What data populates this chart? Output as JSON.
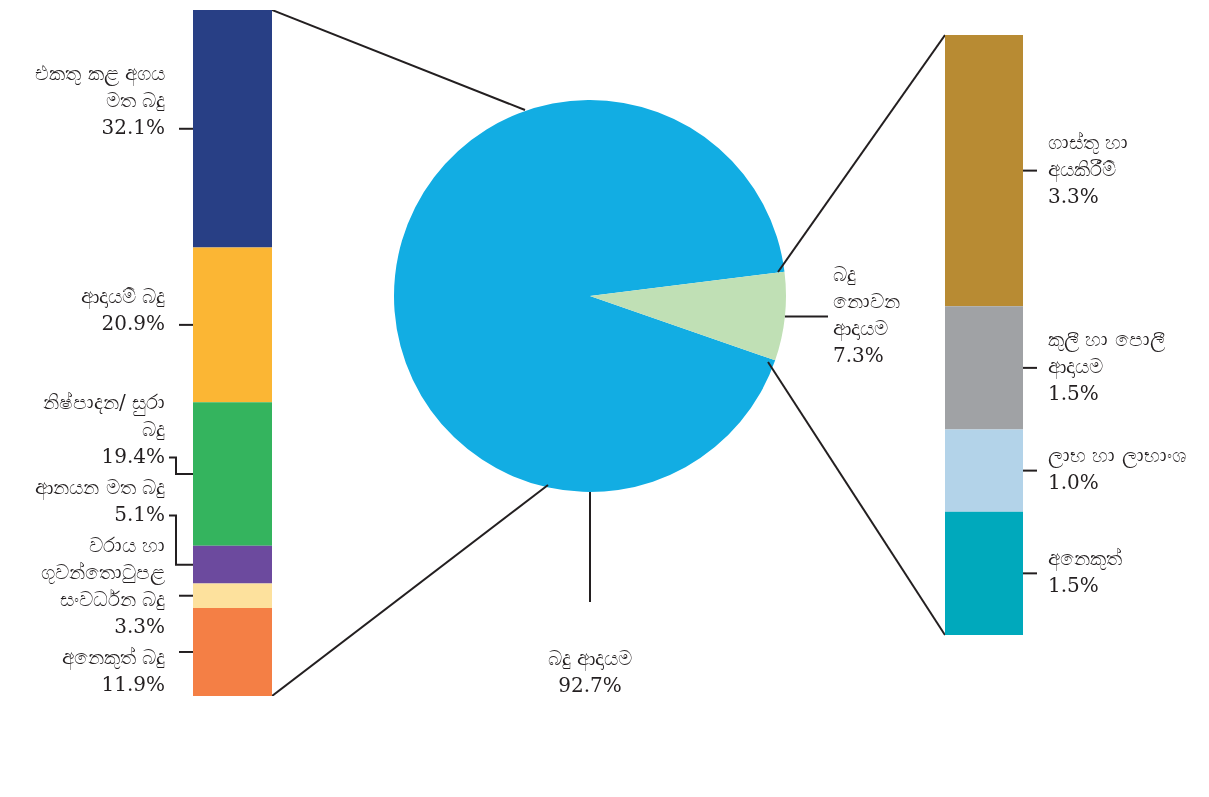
{
  "chart_data": [
    {
      "type": "bar",
      "stacked": true,
      "tick_labels": false,
      "categories": [
        null
      ],
      "series": [
        {
          "name": "අනෙකුත් බදු",
          "color": "#f47f45",
          "values": [
            11.9
          ],
          "value_labels": [
            "11.9%"
          ]
        },
        {
          "name": "වරාය හා ගුවන්තොටුපළ සංවර්ධන බදු",
          "color": "#fde19d",
          "values": [
            3.3
          ],
          "value_labels": [
            "3.3%"
          ]
        },
        {
          "name": "ආනයන මත බදු",
          "color": "#6c4a9e",
          "values": [
            5.1
          ],
          "value_labels": [
            "5.1%"
          ]
        },
        {
          "name": "නිෂ්පාදන/ සුරා බදු",
          "color": "#34b45e",
          "values": [
            19.4
          ],
          "value_labels": [
            "19.4%"
          ]
        },
        {
          "name": "ආදායම් බදු",
          "color": "#fbb634",
          "values": [
            20.9
          ],
          "value_labels": [
            "20.9%"
          ]
        },
        {
          "name": "එකතු කළ අගය මත බදු",
          "color": "#283f85",
          "values": [
            32.1
          ],
          "value_labels": [
            "32.1%"
          ]
        }
      ]
    },
    {
      "type": "pie",
      "categories": [
        "බදු ආදායම",
        "බදු නොවන ආදායම"
      ],
      "values": [
        92.7,
        7.3
      ],
      "colors": [
        "#12ade3",
        "#c0e0b5"
      ],
      "value_labels": [
        "92.7%",
        "7.3%"
      ]
    },
    {
      "type": "bar",
      "stacked": true,
      "tick_labels": false,
      "categories": [
        null
      ],
      "series": [
        {
          "name": "අනෙකුත්",
          "color": "#00a9bc",
          "values": [
            1.5
          ],
          "value_labels": [
            "1.5%"
          ]
        },
        {
          "name": "ලාභ හා ලාභාංශ",
          "color": "#b3d3e9",
          "values": [
            1.0
          ],
          "value_labels": [
            "1.0%"
          ]
        },
        {
          "name": "කුලී හා පොලී ආදායම",
          "color": "#a0a2a5",
          "values": [
            1.5
          ],
          "value_labels": [
            "1.5%"
          ]
        },
        {
          "name": "ගාස්තු හා අයකිරීම්",
          "color": "#b88b33",
          "values": [
            3.3
          ],
          "value_labels": [
            "3.3%"
          ]
        }
      ]
    }
  ]
}
